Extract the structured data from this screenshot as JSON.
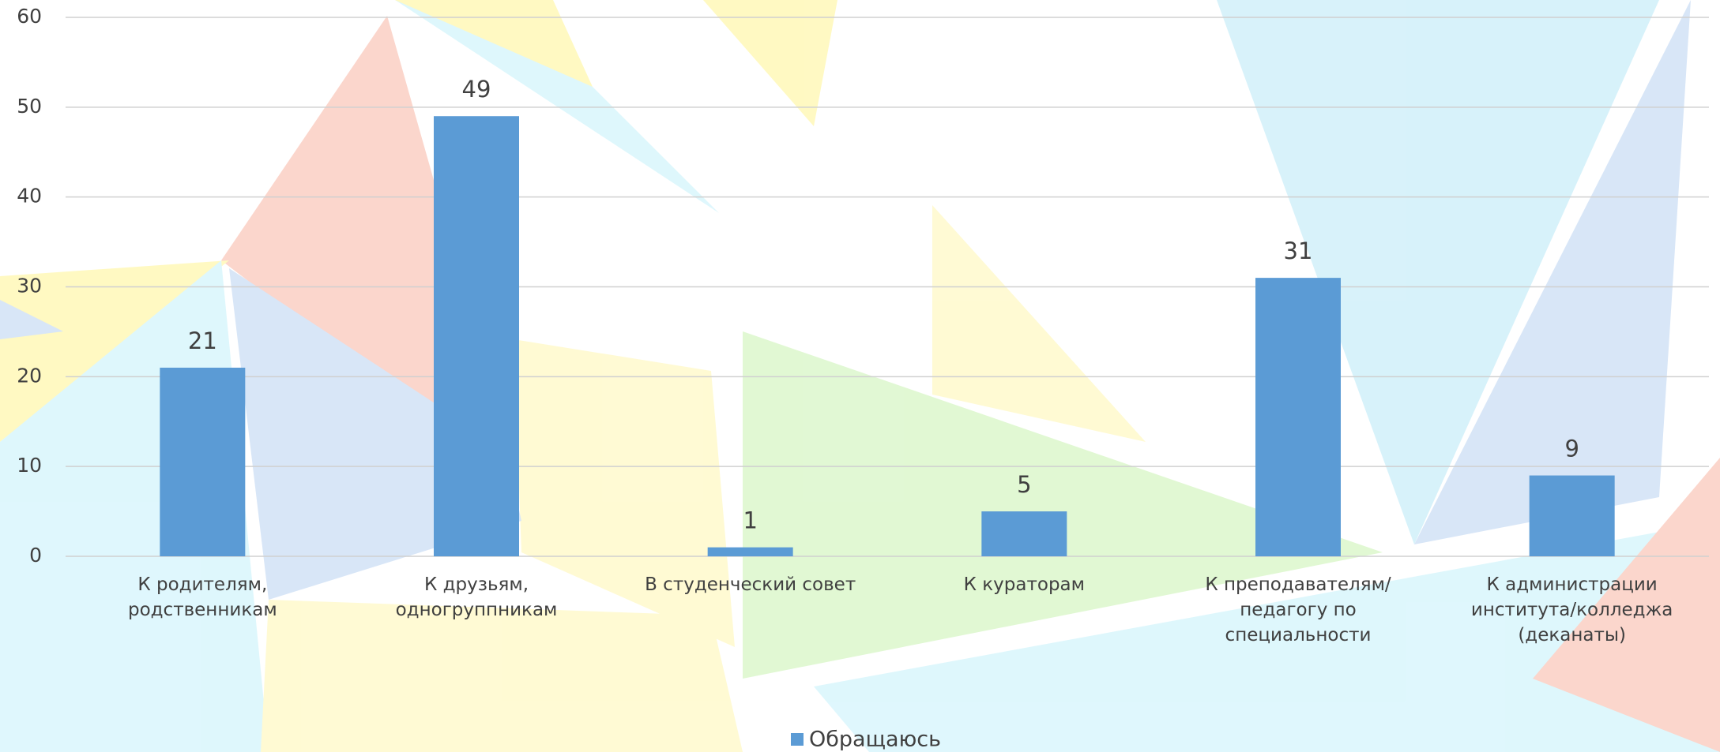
{
  "chart_data": {
    "type": "bar",
    "categories": [
      "К родителям, родственникам",
      "К друзьям, одногруппникам",
      "В студенческий совет",
      "К кураторам",
      "К преподавателям/педагогу по специальности",
      "К администрации института/колледжа (деканаты)"
    ],
    "series": [
      {
        "name": "Обращаюсь",
        "color": "#5b9bd5",
        "values": [
          21,
          49,
          1,
          5,
          31,
          9
        ]
      }
    ],
    "ylim": [
      0,
      60
    ],
    "yticks": [
      0,
      10,
      20,
      30,
      40,
      50,
      60
    ],
    "grid": true,
    "legend": "bottom"
  }
}
